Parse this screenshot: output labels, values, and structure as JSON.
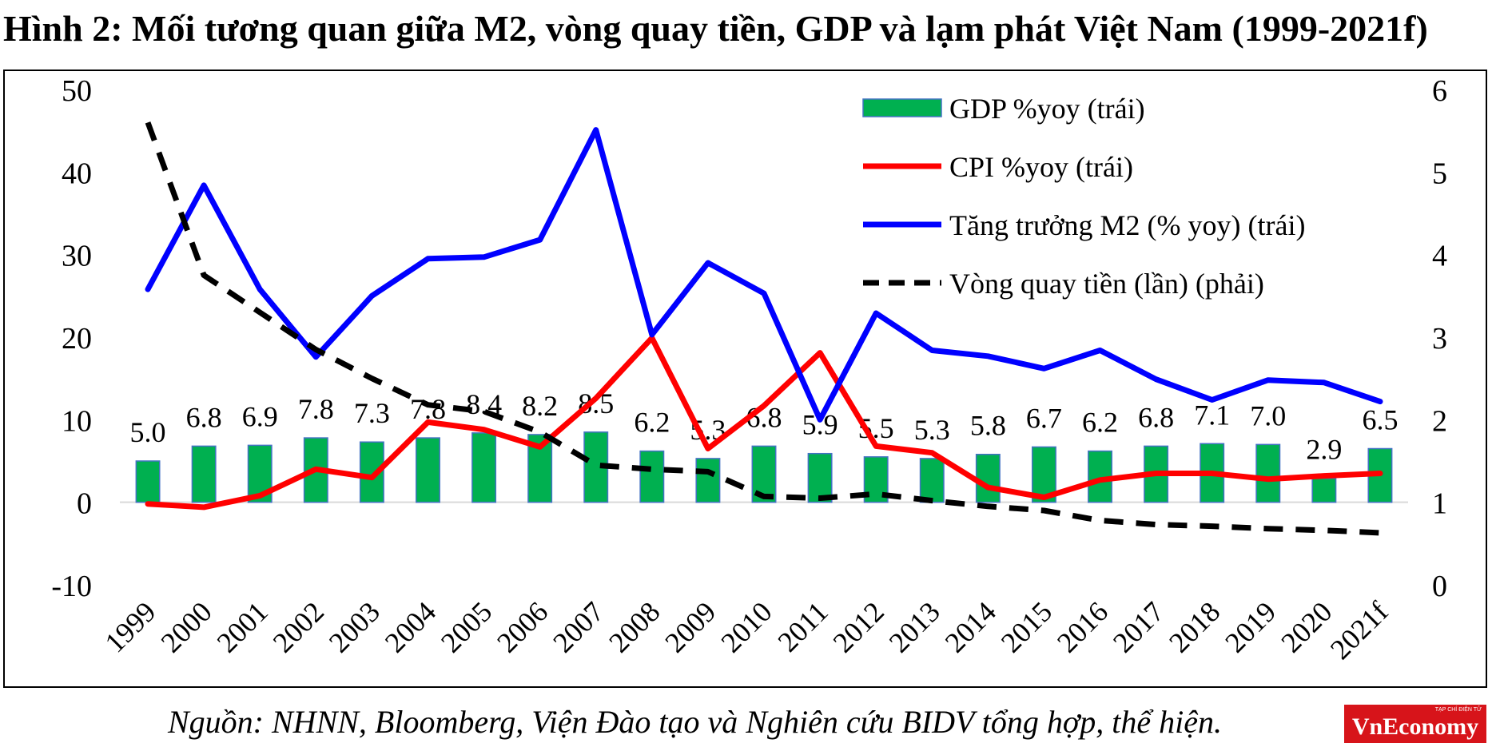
{
  "title": "Hình 2: Mối tương quan giữa M2, vòng quay tiền, GDP và lạm phát Việt Nam (1999-2021f)",
  "source": "Nguồn: NHNN, Bloomberg, Viện Đào tạo và Nghiên cứu BIDV tổng hợp, thể hiện.",
  "logo": {
    "tagline": "TẠP CHÍ ĐIỆN TỬ",
    "name": "VnEconomy",
    "color": "#d7141a"
  },
  "chart_data": {
    "type": "bar-line-combo",
    "categories": [
      "1999",
      "2000",
      "2001",
      "2002",
      "2003",
      "2004",
      "2005",
      "2006",
      "2007",
      "2008",
      "2009",
      "2010",
      "2011",
      "2012",
      "2013",
      "2014",
      "2015",
      "2016",
      "2017",
      "2018",
      "2019",
      "2020",
      "2021f"
    ],
    "left_axis": {
      "min": -10,
      "max": 50,
      "step": 10,
      "ticks": [
        "-10",
        "0",
        "10",
        "20",
        "30",
        "40",
        "50"
      ]
    },
    "right_axis": {
      "min": 0,
      "max": 6,
      "step": 1,
      "ticks": [
        "0",
        "1",
        "2",
        "3",
        "4",
        "5",
        "6"
      ]
    },
    "legend_position": "top-right",
    "series": [
      {
        "name": "GDP %yoy (trái)",
        "type": "bar",
        "axis": "left",
        "color": "#00b050",
        "values": [
          5.0,
          6.8,
          6.9,
          7.8,
          7.3,
          7.8,
          8.4,
          8.2,
          8.5,
          6.2,
          5.3,
          6.8,
          5.9,
          5.5,
          5.3,
          5.8,
          6.7,
          6.2,
          6.8,
          7.1,
          7.0,
          2.9,
          6.5
        ],
        "labels": [
          "5.0",
          "6.8",
          "6.9",
          "7.8",
          "7.3",
          "7.8",
          "8.4",
          "8.2",
          "8.5",
          "6.2",
          "5.3",
          "6.8",
          "5.9",
          "5.5",
          "5.3",
          "5.8",
          "6.7",
          "6.2",
          "6.8",
          "7.1",
          "7.0",
          "2.9",
          "6.5"
        ]
      },
      {
        "name": "CPI %yoy (trái)",
        "type": "line",
        "axis": "left",
        "color": "#ff0000",
        "values": [
          -0.2,
          -0.6,
          0.8,
          4.0,
          3.0,
          9.7,
          8.8,
          6.7,
          12.6,
          19.9,
          6.5,
          11.7,
          18.1,
          6.8,
          6.0,
          1.8,
          0.6,
          2.7,
          3.5,
          3.5,
          2.8,
          3.2,
          3.5
        ]
      },
      {
        "name": "Tăng trưởng M2 (% yoy) (trái)",
        "type": "line",
        "axis": "left",
        "color": "#0000ff",
        "values": [
          25.8,
          38.4,
          25.8,
          17.6,
          25.0,
          29.5,
          29.7,
          31.8,
          45.1,
          20.3,
          29.0,
          25.3,
          10.0,
          22.9,
          18.4,
          17.7,
          16.2,
          18.4,
          14.9,
          12.4,
          14.8,
          14.5,
          12.2
        ]
      },
      {
        "name": "Vòng quay tiền (lần) (phải)",
        "type": "line-dashed",
        "axis": "right",
        "color": "#000000",
        "values": [
          5.6,
          3.75,
          3.3,
          2.85,
          2.5,
          2.18,
          2.1,
          1.85,
          1.45,
          1.4,
          1.37,
          1.07,
          1.05,
          1.1,
          1.02,
          0.95,
          0.9,
          0.78,
          0.73,
          0.71,
          0.68,
          0.66,
          0.63
        ]
      }
    ]
  }
}
